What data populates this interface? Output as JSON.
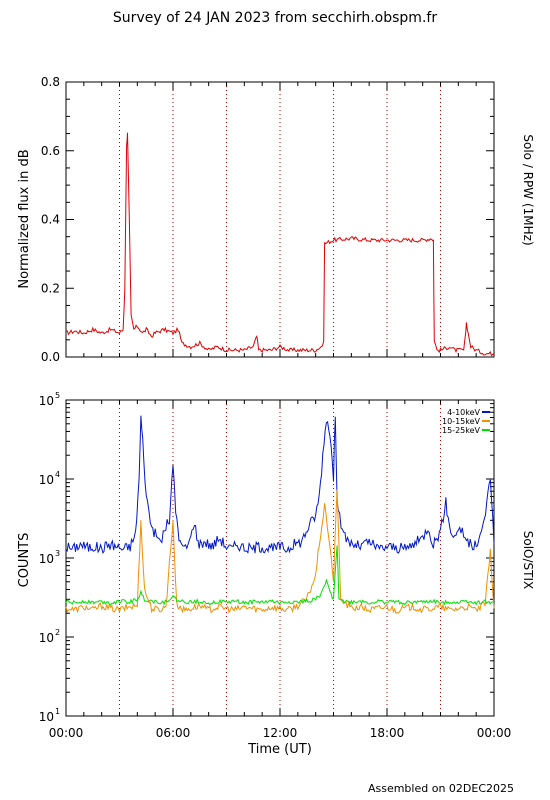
{
  "page": {
    "title": "Survey of 24 JAN 2023 from secchirh.obspm.fr",
    "footer": "Assembled on 02DEC2025"
  },
  "colors": {
    "axis": "#000000",
    "guide": "#b00000",
    "rpw": "#dd0000",
    "band_4_10": "#0018c8",
    "band_10_15": "#f09000",
    "band_15_25": "#00e000"
  },
  "chart_data": [
    {
      "type": "line",
      "ylabel": "Normalized flux in dB",
      "right_label": "Solo / RPW (1MHz)",
      "xlim_hours": [
        0,
        24
      ],
      "ylim": [
        0,
        0.8
      ],
      "yticks": [
        "0.0",
        "0.2",
        "0.4",
        "0.6",
        "0.8"
      ],
      "guide_lines_hours": [
        3,
        6,
        9,
        12,
        15,
        18,
        21
      ],
      "series": [
        {
          "color": "#dd0000",
          "points": [
            [
              0,
              0.07
            ],
            [
              0.5,
              0.075
            ],
            [
              1,
              0.07
            ],
            [
              1.5,
              0.08
            ],
            [
              2,
              0.07
            ],
            [
              2.5,
              0.08
            ],
            [
              3,
              0.07
            ],
            [
              3.2,
              0.08
            ],
            [
              3.3,
              0.2
            ],
            [
              3.4,
              0.62
            ],
            [
              3.45,
              0.65
            ],
            [
              3.55,
              0.4
            ],
            [
              3.65,
              0.12
            ],
            [
              3.8,
              0.08
            ],
            [
              4,
              0.09
            ],
            [
              4.3,
              0.07
            ],
            [
              4.5,
              0.08
            ],
            [
              4.8,
              0.06
            ],
            [
              5,
              0.07
            ],
            [
              5.5,
              0.08
            ],
            [
              6,
              0.07
            ],
            [
              6.3,
              0.08
            ],
            [
              6.5,
              0.04
            ],
            [
              7,
              0.03
            ],
            [
              7.5,
              0.04
            ],
            [
              8,
              0.02
            ],
            [
              8.5,
              0.03
            ],
            [
              9,
              0.02
            ],
            [
              9.5,
              0.02
            ],
            [
              10,
              0.02
            ],
            [
              10.5,
              0.03
            ],
            [
              10.7,
              0.06
            ],
            [
              10.8,
              0.02
            ],
            [
              11,
              0.02
            ],
            [
              11.5,
              0.02
            ],
            [
              12,
              0.03
            ],
            [
              12.5,
              0.02
            ],
            [
              13,
              0.02
            ],
            [
              13.5,
              0.02
            ],
            [
              14,
              0.02
            ],
            [
              14.3,
              0.03
            ],
            [
              14.45,
              0.04
            ],
            [
              14.5,
              0.33
            ],
            [
              15,
              0.34
            ],
            [
              16,
              0.345
            ],
            [
              17,
              0.34
            ],
            [
              18,
              0.34
            ],
            [
              19,
              0.34
            ],
            [
              20,
              0.34
            ],
            [
              20.5,
              0.345
            ],
            [
              20.6,
              0.34
            ],
            [
              20.65,
              0.05
            ],
            [
              20.8,
              0.02
            ],
            [
              21,
              0.02
            ],
            [
              21.5,
              0.03
            ],
            [
              21.8,
              0.02
            ],
            [
              22,
              0.02
            ],
            [
              22.3,
              0.02
            ],
            [
              22.4,
              0.06
            ],
            [
              22.45,
              0.1
            ],
            [
              22.55,
              0.07
            ],
            [
              22.7,
              0.03
            ],
            [
              23,
              0.02
            ],
            [
              23.5,
              0.01
            ],
            [
              24,
              0.01
            ]
          ]
        }
      ]
    },
    {
      "type": "line",
      "ylabel": "COUNTS",
      "right_label": "SolO/STIX",
      "xlabel": "Time (UT)",
      "xlim_hours": [
        0,
        24
      ],
      "ylim_log": [
        1,
        5
      ],
      "yticks": [
        {
          "base": "10",
          "exp": "1"
        },
        {
          "base": "10",
          "exp": "2"
        },
        {
          "base": "10",
          "exp": "3"
        },
        {
          "base": "10",
          "exp": "4"
        },
        {
          "base": "10",
          "exp": "5"
        }
      ],
      "xticks": [
        "00:00",
        "06:00",
        "12:00",
        "18:00",
        "00:00"
      ],
      "guide_lines_hours": [
        3,
        6,
        9,
        12,
        15,
        18,
        21
      ],
      "series": [
        {
          "name": "4-10keV",
          "color": "#0018c8",
          "points": [
            [
              0,
              1400
            ],
            [
              0.4,
              1300
            ],
            [
              0.8,
              1500
            ],
            [
              1.2,
              1350
            ],
            [
              1.6,
              1400
            ],
            [
              2,
              1300
            ],
            [
              2.4,
              1500
            ],
            [
              2.8,
              1400
            ],
            [
              3.2,
              1300
            ],
            [
              3.6,
              1400
            ],
            [
              3.9,
              2000
            ],
            [
              4.1,
              10000
            ],
            [
              4.2,
              60000
            ],
            [
              4.3,
              30000
            ],
            [
              4.5,
              6000
            ],
            [
              4.8,
              2500
            ],
            [
              5,
              2000
            ],
            [
              5.3,
              1600
            ],
            [
              5.6,
              2500
            ],
            [
              5.8,
              3000
            ],
            [
              6,
              15000
            ],
            [
              6.15,
              4000
            ],
            [
              6.4,
              1500
            ],
            [
              6.7,
              1300
            ],
            [
              7,
              1800
            ],
            [
              7.2,
              3000
            ],
            [
              7.4,
              1500
            ],
            [
              7.8,
              1600
            ],
            [
              8.2,
              1400
            ],
            [
              8.6,
              1800
            ],
            [
              9,
              1400
            ],
            [
              9.3,
              1300
            ],
            [
              9.6,
              1500
            ],
            [
              10,
              1350
            ],
            [
              10.4,
              1300
            ],
            [
              10.8,
              1400
            ],
            [
              11.2,
              1350
            ],
            [
              11.6,
              1300
            ],
            [
              12,
              1400
            ],
            [
              12.4,
              1300
            ],
            [
              12.8,
              1500
            ],
            [
              13.2,
              1600
            ],
            [
              13.6,
              2500
            ],
            [
              14,
              3500
            ],
            [
              14.2,
              6000
            ],
            [
              14.4,
              20000
            ],
            [
              14.6,
              60000
            ],
            [
              14.8,
              40000
            ],
            [
              15,
              10000
            ],
            [
              15.1,
              70000
            ],
            [
              15.2,
              6000
            ],
            [
              15.5,
              2000
            ],
            [
              16,
              1500
            ],
            [
              16.5,
              1400
            ],
            [
              17,
              1600
            ],
            [
              17.5,
              1300
            ],
            [
              18,
              1400
            ],
            [
              18.5,
              1350
            ],
            [
              19,
              1300
            ],
            [
              19.5,
              1500
            ],
            [
              20,
              1800
            ],
            [
              20.3,
              2500
            ],
            [
              20.6,
              1500
            ],
            [
              21,
              2200
            ],
            [
              21.3,
              5000
            ],
            [
              21.5,
              2500
            ],
            [
              21.8,
              1800
            ],
            [
              22,
              2500
            ],
            [
              22.3,
              2000
            ],
            [
              22.6,
              1500
            ],
            [
              23,
              1400
            ],
            [
              23.3,
              2000
            ],
            [
              23.6,
              5000
            ],
            [
              23.8,
              11000
            ],
            [
              24,
              1500
            ]
          ]
        },
        {
          "name": "10-15keV",
          "color": "#f09000",
          "points": [
            [
              0,
              230
            ],
            [
              0.5,
              220
            ],
            [
              1,
              240
            ],
            [
              1.5,
              220
            ],
            [
              2,
              250
            ],
            [
              2.5,
              230
            ],
            [
              3,
              220
            ],
            [
              3.5,
              240
            ],
            [
              4,
              250
            ],
            [
              4.2,
              3000
            ],
            [
              4.4,
              400
            ],
            [
              4.8,
              230
            ],
            [
              5.2,
              220
            ],
            [
              5.6,
              240
            ],
            [
              6,
              3000
            ],
            [
              6.2,
              260
            ],
            [
              6.6,
              220
            ],
            [
              7,
              230
            ],
            [
              7.5,
              250
            ],
            [
              8,
              220
            ],
            [
              8.5,
              240
            ],
            [
              9,
              230
            ],
            [
              9.5,
              220
            ],
            [
              10,
              240
            ],
            [
              10.5,
              230
            ],
            [
              11,
              220
            ],
            [
              11.5,
              240
            ],
            [
              12,
              230
            ],
            [
              12.5,
              220
            ],
            [
              13,
              250
            ],
            [
              13.5,
              300
            ],
            [
              14,
              600
            ],
            [
              14.2,
              1500
            ],
            [
              14.5,
              4500
            ],
            [
              14.8,
              1500
            ],
            [
              15,
              500
            ],
            [
              15.2,
              8000
            ],
            [
              15.4,
              300
            ],
            [
              16,
              230
            ],
            [
              16.5,
              240
            ],
            [
              17,
              220
            ],
            [
              17.5,
              230
            ],
            [
              18,
              240
            ],
            [
              18.5,
              220
            ],
            [
              19,
              230
            ],
            [
              19.5,
              240
            ],
            [
              20,
              220
            ],
            [
              20.5,
              230
            ],
            [
              21,
              240
            ],
            [
              21.5,
              220
            ],
            [
              22,
              230
            ],
            [
              22.5,
              240
            ],
            [
              23,
              220
            ],
            [
              23.5,
              260
            ],
            [
              23.8,
              1200
            ],
            [
              24,
              230
            ]
          ]
        },
        {
          "name": "15-25keV",
          "color": "#00e000",
          "points": [
            [
              0,
              280
            ],
            [
              0.5,
              270
            ],
            [
              1,
              285
            ],
            [
              1.5,
              275
            ],
            [
              2,
              280
            ],
            [
              2.5,
              270
            ],
            [
              3,
              285
            ],
            [
              3.5,
              275
            ],
            [
              4,
              300
            ],
            [
              4.2,
              360
            ],
            [
              4.4,
              300
            ],
            [
              5,
              280
            ],
            [
              5.5,
              275
            ],
            [
              6,
              320
            ],
            [
              6.3,
              285
            ],
            [
              7,
              275
            ],
            [
              7.5,
              285
            ],
            [
              8,
              270
            ],
            [
              8.5,
              280
            ],
            [
              9,
              275
            ],
            [
              9.5,
              285
            ],
            [
              10,
              270
            ],
            [
              10.5,
              280
            ],
            [
              11,
              275
            ],
            [
              11.5,
              285
            ],
            [
              12,
              270
            ],
            [
              12.5,
              280
            ],
            [
              13,
              275
            ],
            [
              13.5,
              285
            ],
            [
              14,
              300
            ],
            [
              14.3,
              350
            ],
            [
              14.6,
              500
            ],
            [
              14.8,
              380
            ],
            [
              15,
              300
            ],
            [
              15.2,
              1500
            ],
            [
              15.3,
              320
            ],
            [
              15.6,
              280
            ],
            [
              16,
              275
            ],
            [
              16.5,
              285
            ],
            [
              17,
              270
            ],
            [
              17.5,
              280
            ],
            [
              18,
              275
            ],
            [
              18.5,
              285
            ],
            [
              19,
              270
            ],
            [
              19.5,
              280
            ],
            [
              20,
              275
            ],
            [
              20.5,
              285
            ],
            [
              21,
              270
            ],
            [
              21.5,
              280
            ],
            [
              22,
              275
            ],
            [
              22.5,
              285
            ],
            [
              23,
              270
            ],
            [
              23.5,
              280
            ],
            [
              24,
              275
            ]
          ]
        }
      ]
    }
  ]
}
